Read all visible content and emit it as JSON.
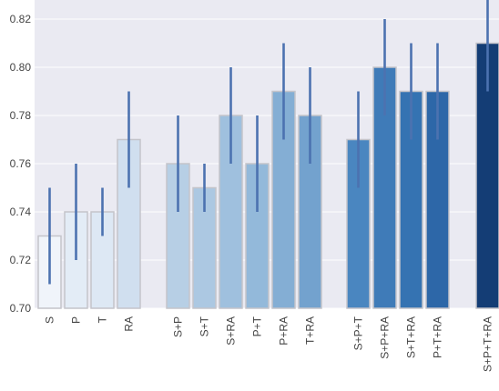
{
  "chart_data": {
    "type": "bar",
    "title": "",
    "xlabel": "",
    "ylabel": "",
    "ylim": [
      0.7,
      0.83
    ],
    "yticks": [
      "0.70",
      "0.72",
      "0.74",
      "0.76",
      "0.78",
      "0.80",
      "0.82"
    ],
    "grid": true,
    "background": "#eaeaf2",
    "error_bar_color": "#4c72b0",
    "categories": [
      "S",
      "P",
      "T",
      "RA",
      "S+P",
      "S+T",
      "S+RA",
      "P+T",
      "P+RA",
      "T+RA",
      "S+P+T",
      "S+P+RA",
      "S+T+RA",
      "P+T+RA",
      "S+P+T+RA"
    ],
    "groups": [
      [
        "S",
        "P",
        "T",
        "RA"
      ],
      [
        "S+P",
        "S+T",
        "S+RA",
        "P+T",
        "P+RA",
        "T+RA"
      ],
      [
        "S+P+T",
        "S+P+RA",
        "S+T+RA",
        "P+T+RA"
      ],
      [
        "S+P+T+RA"
      ]
    ],
    "values": [
      0.73,
      0.74,
      0.74,
      0.77,
      0.76,
      0.75,
      0.78,
      0.76,
      0.79,
      0.78,
      0.77,
      0.8,
      0.79,
      0.79,
      0.81
    ],
    "error_low": [
      0.71,
      0.72,
      0.73,
      0.75,
      0.74,
      0.74,
      0.76,
      0.74,
      0.77,
      0.76,
      0.75,
      0.78,
      0.77,
      0.77,
      0.79
    ],
    "error_high": [
      0.75,
      0.76,
      0.75,
      0.79,
      0.78,
      0.76,
      0.8,
      0.78,
      0.81,
      0.8,
      0.79,
      0.82,
      0.81,
      0.81,
      0.83
    ],
    "colors": [
      "#f0f4fa",
      "#e3ecf6",
      "#dde8f4",
      "#d0dfef",
      "#b7cfe5",
      "#acc8e2",
      "#9fc0de",
      "#93b9da",
      "#84aed4",
      "#73a2ce",
      "#4a86c0",
      "#3f7bb8",
      "#3573b2",
      "#2d67a8",
      "#143d75"
    ]
  }
}
